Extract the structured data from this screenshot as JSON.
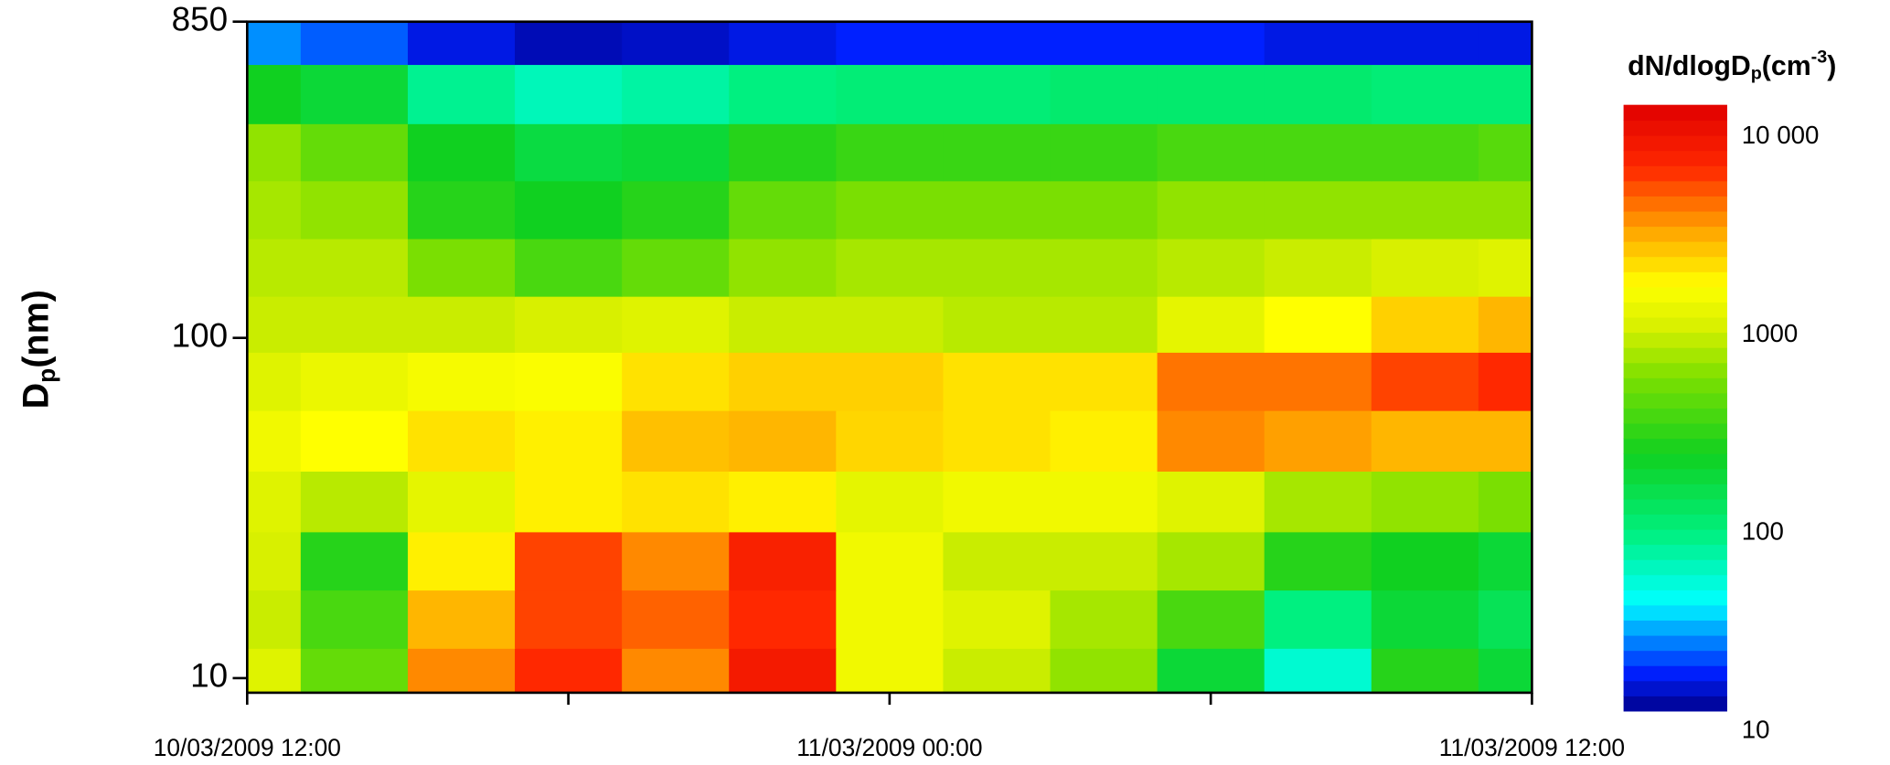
{
  "chart_data": {
    "type": "contour",
    "y_label": [
      "D",
      "p",
      "(nm)"
    ],
    "colorbar_label": [
      "dN/dlogD",
      "p",
      "(cm",
      "-3",
      ")"
    ],
    "x": [
      "10/03/2009 12:00",
      "10/03/2009 14:00",
      "10/03/2009 16:00",
      "10/03/2009 18:00",
      "10/03/2009 20:00",
      "10/03/2009 22:00",
      "11/03/2009 00:00",
      "11/03/2009 02:00",
      "11/03/2009 04:00",
      "11/03/2009 06:00",
      "11/03/2009 08:00",
      "11/03/2009 10:00",
      "11/03/2009 12:00"
    ],
    "y": [
      10,
      15,
      22,
      33,
      50,
      75,
      110,
      160,
      240,
      350,
      520,
      780
    ],
    "z": [
      [
        1200,
        500,
        4000,
        7000,
        4000,
        9000,
        1500,
        1000,
        700,
        200,
        60,
        300,
        200
      ],
      [
        1000,
        400,
        3000,
        6000,
        5000,
        7000,
        1500,
        1200,
        800,
        400,
        100,
        200,
        150
      ],
      [
        1100,
        300,
        2000,
        6000,
        4000,
        8000,
        1500,
        1000,
        1000,
        800,
        300,
        250,
        200
      ],
      [
        1200,
        900,
        1300,
        2000,
        2200,
        2000,
        1300,
        1500,
        1500,
        1200,
        800,
        700,
        600
      ],
      [
        1500,
        1800,
        2200,
        2000,
        2800,
        3000,
        2400,
        2200,
        2000,
        4000,
        3500,
        3000,
        3000
      ],
      [
        1200,
        1400,
        1600,
        1700,
        2200,
        2500,
        2500,
        2200,
        2200,
        4500,
        4500,
        6000,
        7000
      ],
      [
        1000,
        1000,
        1000,
        1100,
        1200,
        1000,
        1000,
        900,
        900,
        1300,
        1800,
        2500,
        3000
      ],
      [
        900,
        900,
        600,
        400,
        500,
        700,
        800,
        800,
        800,
        900,
        1000,
        1100,
        1200
      ],
      [
        800,
        700,
        300,
        250,
        300,
        500,
        600,
        600,
        600,
        700,
        700,
        700,
        700
      ],
      [
        700,
        500,
        250,
        180,
        200,
        300,
        350,
        350,
        350,
        400,
        400,
        400,
        450
      ],
      [
        250,
        200,
        90,
        70,
        80,
        100,
        110,
        110,
        120,
        120,
        120,
        110,
        110
      ],
      [
        30,
        25,
        18,
        15,
        16,
        18,
        20,
        20,
        20,
        20,
        18,
        18,
        18
      ]
    ],
    "xlim": [
      "10/03/2009 12:00",
      "11/03/2009 12:00"
    ],
    "xticks": [
      "10/03/2009 12:00",
      {
        "value": "10/03/2009 18:00",
        "label": null
      },
      "11/03/2009 00:00",
      {
        "value": "11/03/2009 06:00",
        "label": null
      },
      "11/03/2009 12:00"
    ],
    "ylim": [
      9.06,
      850
    ],
    "yticks": [
      10,
      100,
      850
    ],
    "y_log": true,
    "zlim": [
      12.7,
      14500
    ],
    "zticks": [
      10,
      100,
      1000,
      {
        "value": 10000,
        "label": "10 000"
      }
    ],
    "z_log": true,
    "colormap": [
      {
        "value": 12.7,
        "color": "#00008b"
      },
      {
        "value": 20,
        "color": "#0020ff"
      },
      {
        "value": 45,
        "color": "#00ffff"
      },
      {
        "value": 100,
        "color": "#00f080"
      },
      {
        "value": 250,
        "color": "#10d020"
      },
      {
        "value": 630,
        "color": "#80e000"
      },
      {
        "value": 1100,
        "color": "#d8f000"
      },
      {
        "value": 1800,
        "color": "#ffff00"
      },
      {
        "value": 3500,
        "color": "#ffa000"
      },
      {
        "value": 7000,
        "color": "#ff2800"
      },
      {
        "value": 14500,
        "color": "#e00000"
      }
    ]
  }
}
